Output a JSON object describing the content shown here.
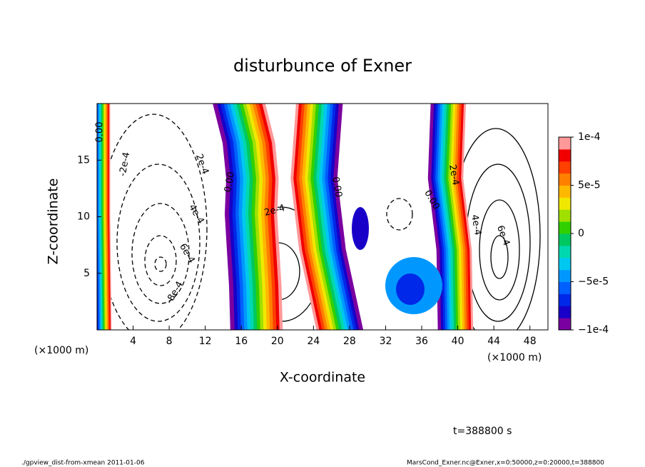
{
  "chart_data": {
    "type": "contour",
    "title": "disturbunce of Exner",
    "xlabel": "X-coordinate",
    "ylabel": "Z-coordinate",
    "xunit": "(×1000 m)",
    "yunit": "(×1000 m)",
    "xlim": [
      0,
      50
    ],
    "xticks": [
      4,
      8,
      12,
      16,
      20,
      24,
      28,
      32,
      36,
      40,
      44,
      48
    ],
    "ylim": [
      0,
      20
    ],
    "yticks": [
      5,
      10,
      15
    ],
    "colorbar": {
      "lim": [
        -0.0001,
        0.0001
      ],
      "ticks": [
        {
          "value": -0.0001,
          "label": "−1e-4"
        },
        {
          "value": -5e-05,
          "label": "−5e-5"
        },
        0,
        {
          "value": 5e-05,
          "label": "5e-5"
        },
        {
          "value": 0.0001,
          "label": "1e-4"
        }
      ],
      "colors": [
        "#7a00a0",
        "#1800c8",
        "#0028e8",
        "#0060ff",
        "#0098ff",
        "#00c8f0",
        "#00d8b0",
        "#00c860",
        "#30d000",
        "#a0e000",
        "#f0e800",
        "#ffb800",
        "#ff8000",
        "#ff4000",
        "#f00000",
        "#ff9898"
      ]
    },
    "contour_labels": [
      "0.00",
      "-2e-4",
      "2e-4",
      "4e-4",
      "6e-4",
      "-8e-4",
      "0.00",
      "2e-4",
      "0.00",
      "0.00",
      "2e-4",
      "4e-4",
      "6e-4"
    ],
    "time_label": "t=388800 s",
    "footer_left": "./gpview_dist-from-xmean  2011-01-06",
    "footer_right": "MarsCond_Exner.nc@Exner,x=0:50000,z=0:20000,t=388800"
  }
}
